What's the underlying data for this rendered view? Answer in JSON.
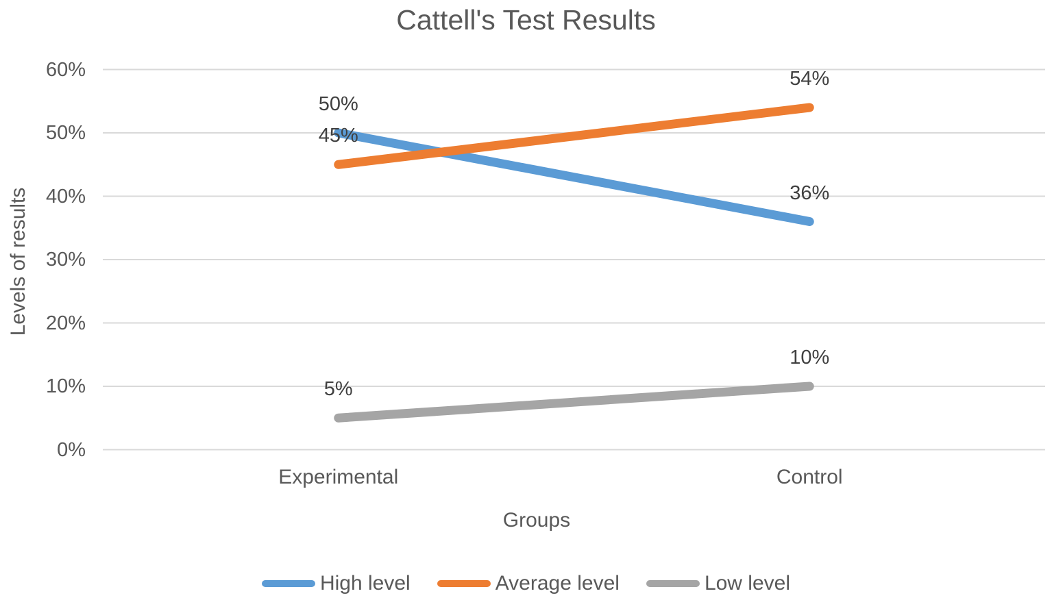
{
  "chart_data": {
    "type": "line",
    "title": "Cattell's Test Results",
    "xlabel": "Groups",
    "ylabel": "Levels of results",
    "categories": [
      "Experimental",
      "Control"
    ],
    "series": [
      {
        "name": "High level",
        "color": "#5B9BD5",
        "values": [
          50,
          36
        ]
      },
      {
        "name": "Average level",
        "color": "#ED7D31",
        "values": [
          45,
          54
        ]
      },
      {
        "name": "Low level",
        "color": "#A5A5A5",
        "values": [
          5,
          10
        ]
      }
    ],
    "ylim": [
      0,
      60
    ],
    "yticks": [
      0,
      10,
      20,
      30,
      40,
      50,
      60
    ],
    "ytick_labels": [
      "0%",
      "10%",
      "20%",
      "30%",
      "40%",
      "50%",
      "60%"
    ],
    "data_labels": [
      "50%",
      "45%",
      "54%",
      "36%",
      "5%",
      "10%"
    ],
    "value_suffix": "%",
    "grid": "horizontal",
    "legend_position": "bottom",
    "colors": {
      "gridline": "#D9D9D9",
      "axis_text": "#595959",
      "data_label_text": "#404040",
      "title_text": "#595959"
    }
  }
}
